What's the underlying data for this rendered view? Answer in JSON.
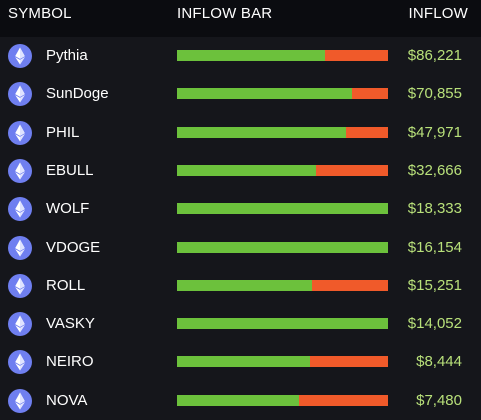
{
  "header": {
    "symbol_label": "SYMBOL",
    "bar_label": "INFLOW BAR",
    "inflow_label": "INFLOW"
  },
  "colors": {
    "inflow": "#6cc13c",
    "outflow": "#f05a2a",
    "value_text": "#b8e07a",
    "icon_bg": "#6f7ff0"
  },
  "rows": [
    {
      "icon": "ethereum-icon",
      "symbol": "Pythia",
      "inflow_share": 0.7,
      "inflow": "$86,221"
    },
    {
      "icon": "ethereum-icon",
      "symbol": "SunDoge",
      "inflow_share": 0.83,
      "inflow": "$70,855"
    },
    {
      "icon": "ethereum-icon",
      "symbol": "PHIL",
      "inflow_share": 0.8,
      "inflow": "$47,971"
    },
    {
      "icon": "ethereum-icon",
      "symbol": "EBULL",
      "inflow_share": 0.66,
      "inflow": "$32,666"
    },
    {
      "icon": "ethereum-icon",
      "symbol": "WOLF",
      "inflow_share": 1.0,
      "inflow": "$18,333"
    },
    {
      "icon": "ethereum-icon",
      "symbol": "VDOGE",
      "inflow_share": 1.0,
      "inflow": "$16,154"
    },
    {
      "icon": "ethereum-icon",
      "symbol": "ROLL",
      "inflow_share": 0.64,
      "inflow": "$15,251"
    },
    {
      "icon": "ethereum-icon",
      "symbol": "VASKY",
      "inflow_share": 1.0,
      "inflow": "$14,052"
    },
    {
      "icon": "ethereum-icon",
      "symbol": "NEIRO",
      "inflow_share": 0.63,
      "inflow": "$8,444"
    },
    {
      "icon": "ethereum-icon",
      "symbol": "NOVA",
      "inflow_share": 0.58,
      "inflow": "$7,480"
    }
  ]
}
